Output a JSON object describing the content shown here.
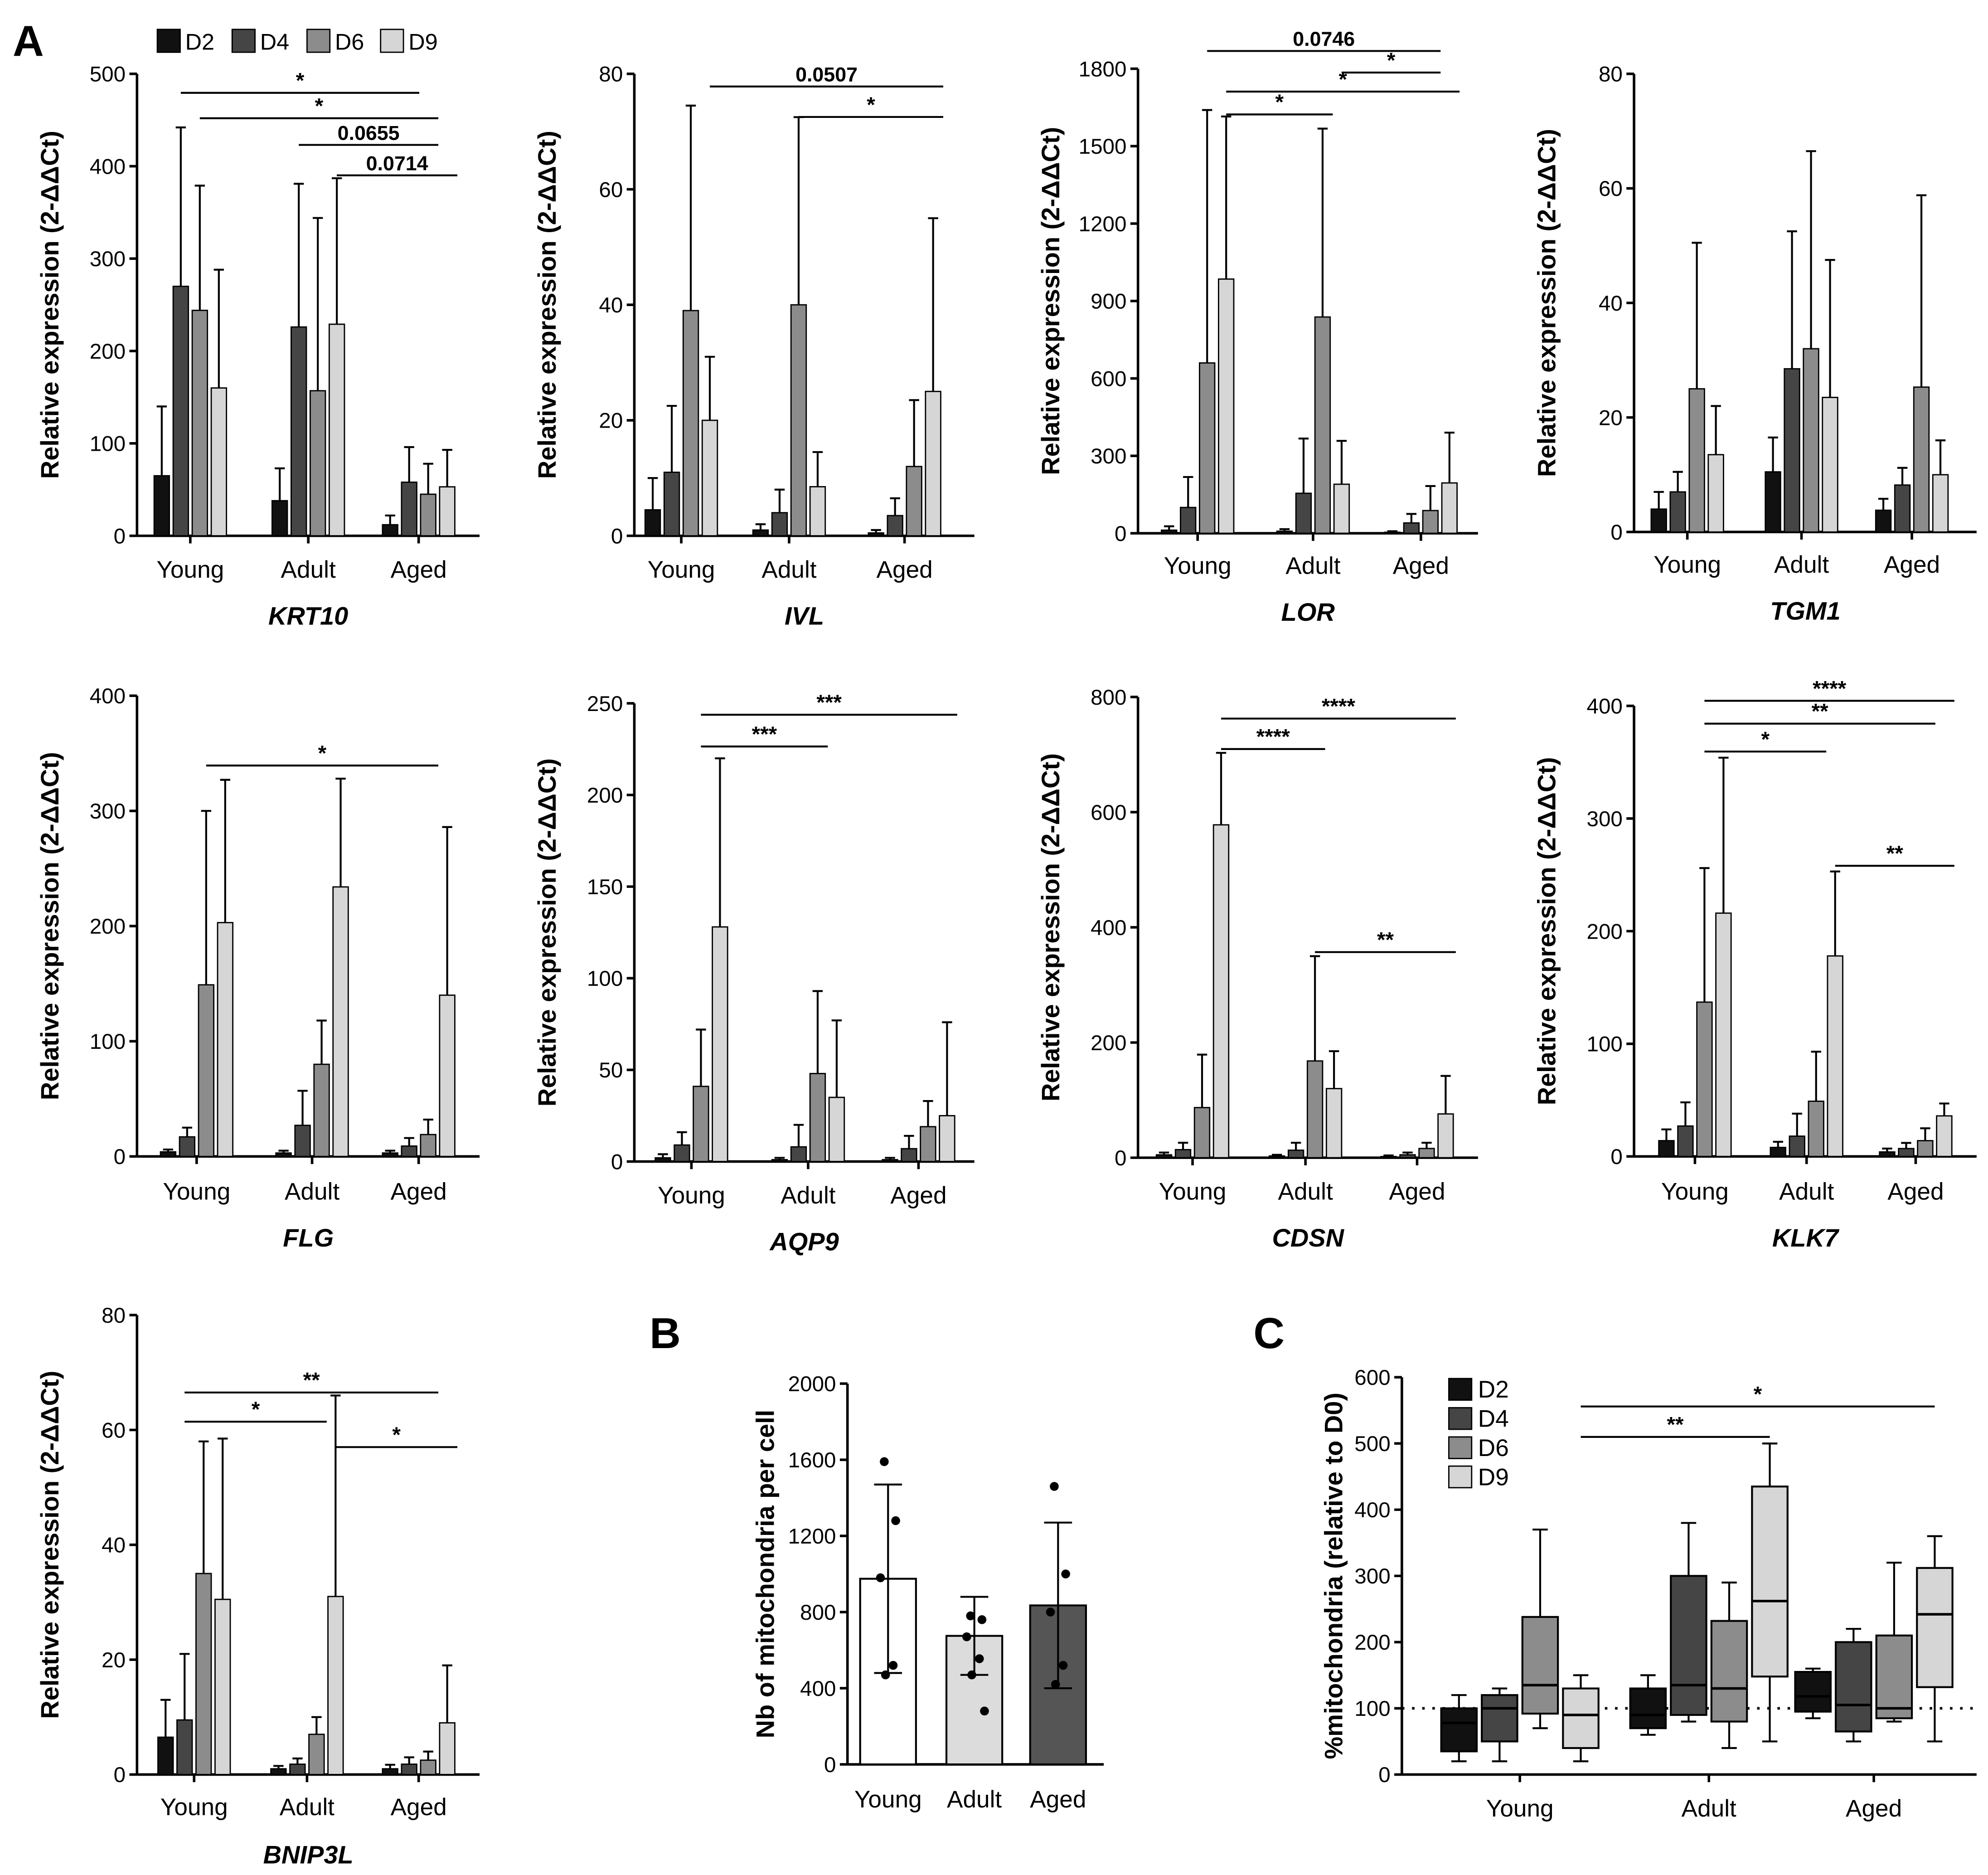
{
  "panel_labels": {
    "a": "A",
    "b": "B",
    "c": "C"
  },
  "colors": {
    "D2": "#111111",
    "D4": "#454545",
    "D6": "#8c8c8c",
    "D9": "#d6d6d6",
    "young": "#ffffff",
    "adult": "#dcdcdc",
    "aged": "#555555"
  },
  "chart_data": [
    {
      "id": "KRT10",
      "type": "bar",
      "title": "KRT10",
      "ylabel": "Relative expression (2-ΔΔCt)",
      "ylim": [
        0,
        500
      ],
      "yticks": [
        0,
        100,
        200,
        300,
        400,
        500
      ],
      "categories": [
        "Young",
        "Adult",
        "Aged"
      ],
      "series": [
        {
          "name": "D2",
          "values": [
            65,
            38,
            12
          ],
          "errors": [
            75,
            35,
            10
          ]
        },
        {
          "name": "D4",
          "values": [
            270,
            226,
            58
          ],
          "errors": [
            172,
            155,
            38
          ]
        },
        {
          "name": "D6",
          "values": [
            244,
            157,
            45
          ],
          "errors": [
            135,
            187,
            33
          ]
        },
        {
          "name": "D9",
          "values": [
            160,
            229,
            53
          ],
          "errors": [
            128,
            158,
            40
          ]
        }
      ],
      "comparisons": [
        {
          "label": "*",
          "from": [
            0,
            1
          ],
          "to": [
            2,
            1
          ]
        },
        {
          "label": "*",
          "from": [
            0,
            2
          ],
          "to": [
            2,
            2
          ]
        },
        {
          "label": "0.0655",
          "from": [
            1,
            1
          ],
          "to": [
            2,
            2
          ]
        },
        {
          "label": "0.0714",
          "from": [
            1,
            3
          ],
          "to": [
            2,
            3
          ]
        }
      ]
    },
    {
      "id": "IVL",
      "type": "bar",
      "title": "IVL",
      "ylabel": "Relative expression (2-ΔΔCt)",
      "ylim": [
        0,
        80
      ],
      "yticks": [
        0,
        20,
        40,
        60,
        80
      ],
      "categories": [
        "Young",
        "Adult",
        "Aged"
      ],
      "series": [
        {
          "name": "D2",
          "values": [
            4.5,
            1,
            0.5
          ],
          "errors": [
            5.5,
            1,
            0.5
          ]
        },
        {
          "name": "D4",
          "values": [
            11,
            4,
            3.5
          ],
          "errors": [
            11.5,
            4,
            3
          ]
        },
        {
          "name": "D6",
          "values": [
            39,
            40,
            12
          ],
          "errors": [
            35.5,
            32.5,
            11.5
          ]
        },
        {
          "name": "D9",
          "values": [
            20,
            8.5,
            25
          ],
          "errors": [
            11,
            6,
            30
          ]
        }
      ],
      "comparisons": [
        {
          "label": "0.0507",
          "from": [
            0,
            3
          ],
          "to": [
            2,
            3
          ]
        },
        {
          "label": "*",
          "from": [
            1,
            2
          ],
          "to": [
            2,
            3
          ]
        }
      ]
    },
    {
      "id": "LOR",
      "type": "bar",
      "title": "LOR",
      "ylabel": "Relative expression (2-ΔΔCt)",
      "ylim": [
        0,
        1800
      ],
      "yticks": [
        0,
        300,
        600,
        900,
        1200,
        1500,
        1800
      ],
      "categories": [
        "Young",
        "Adult",
        "Aged"
      ],
      "series": [
        {
          "name": "D2",
          "values": [
            12,
            8,
            4
          ],
          "errors": [
            15,
            8,
            4
          ]
        },
        {
          "name": "D4",
          "values": [
            100,
            155,
            40
          ],
          "errors": [
            118,
            212,
            35
          ]
        },
        {
          "name": "D6",
          "values": [
            660,
            838,
            88
          ],
          "errors": [
            980,
            730,
            95
          ]
        },
        {
          "name": "D9",
          "values": [
            985,
            190,
            195
          ],
          "errors": [
            630,
            168,
            195
          ]
        }
      ],
      "comparisons": [
        {
          "label": "0.0746",
          "from": [
            0,
            2
          ],
          "to": [
            2,
            2
          ]
        },
        {
          "label": "*",
          "from": [
            1,
            3
          ],
          "to": [
            2,
            2
          ]
        },
        {
          "label": "*",
          "from": [
            0,
            3
          ],
          "to": [
            2,
            3
          ]
        },
        {
          "label": "*",
          "from": [
            0,
            3
          ],
          "to": [
            1,
            2
          ]
        }
      ]
    },
    {
      "id": "TGM1",
      "type": "bar",
      "title": "TGM1",
      "ylabel": "Relative expression (2-ΔΔCt)",
      "ylim": [
        0,
        80
      ],
      "yticks": [
        0,
        20,
        40,
        60,
        80
      ],
      "categories": [
        "Young",
        "Adult",
        "Aged"
      ],
      "series": [
        {
          "name": "D2",
          "values": [
            4,
            10.5,
            3.8
          ],
          "errors": [
            3,
            6,
            2
          ]
        },
        {
          "name": "D4",
          "values": [
            7,
            28.5,
            8.2
          ],
          "errors": [
            3.5,
            24,
            3
          ]
        },
        {
          "name": "D6",
          "values": [
            25,
            32,
            25.3
          ],
          "errors": [
            25.5,
            34.5,
            33.5
          ]
        },
        {
          "name": "D9",
          "values": [
            13.5,
            23.5,
            10
          ],
          "errors": [
            8.5,
            24,
            6
          ]
        }
      ],
      "comparisons": []
    },
    {
      "id": "FLG",
      "type": "bar",
      "title": "FLG",
      "ylabel": "Relative expression (2-ΔΔCt)",
      "ylim": [
        0,
        400
      ],
      "yticks": [
        0,
        100,
        200,
        300,
        400
      ],
      "categories": [
        "Young",
        "Adult",
        "Aged"
      ],
      "series": [
        {
          "name": "D2",
          "values": [
            4,
            3,
            3
          ],
          "errors": [
            2,
            2,
            2
          ]
        },
        {
          "name": "D4",
          "values": [
            17,
            27,
            9
          ],
          "errors": [
            8,
            30,
            7
          ]
        },
        {
          "name": "D6",
          "values": [
            149,
            80,
            19
          ],
          "errors": [
            151,
            38,
            13
          ]
        },
        {
          "name": "D9",
          "values": [
            203,
            234,
            140
          ],
          "errors": [
            124,
            94,
            146
          ]
        }
      ],
      "comparisons": [
        {
          "label": "*",
          "from": [
            0,
            2
          ],
          "to": [
            2,
            2
          ]
        }
      ]
    },
    {
      "id": "AQP9",
      "type": "bar",
      "title": "AQP9",
      "ylabel": "Relative expression (2-ΔΔCt)",
      "ylim": [
        0,
        250
      ],
      "yticks": [
        0,
        50,
        100,
        150,
        200,
        250
      ],
      "categories": [
        "Young",
        "Adult",
        "Aged"
      ],
      "series": [
        {
          "name": "D2",
          "values": [
            2,
            1,
            1
          ],
          "errors": [
            2,
            1,
            1
          ]
        },
        {
          "name": "D4",
          "values": [
            9,
            8,
            7
          ],
          "errors": [
            7,
            12,
            7
          ]
        },
        {
          "name": "D6",
          "values": [
            41,
            48,
            19
          ],
          "errors": [
            31,
            45,
            14
          ]
        },
        {
          "name": "D9",
          "values": [
            128,
            35,
            25
          ],
          "errors": [
            92,
            42,
            51
          ]
        }
      ],
      "comparisons": [
        {
          "label": "***",
          "from": [
            0,
            2
          ],
          "to": [
            2,
            3
          ]
        },
        {
          "label": "***",
          "from": [
            0,
            2
          ],
          "to": [
            1,
            2
          ]
        }
      ]
    },
    {
      "id": "CDSN",
      "type": "bar",
      "title": "CDSN",
      "ylabel": "Relative expression (2-ΔΔCt)",
      "ylim": [
        0,
        800
      ],
      "yticks": [
        0,
        200,
        400,
        600,
        800
      ],
      "categories": [
        "Young",
        "Adult",
        "Aged"
      ],
      "series": [
        {
          "name": "D2",
          "values": [
            5,
            3,
            2
          ],
          "errors": [
            4,
            2,
            2
          ]
        },
        {
          "name": "D4",
          "values": [
            14,
            13,
            5
          ],
          "errors": [
            12,
            13,
            4
          ]
        },
        {
          "name": "D6",
          "values": [
            87,
            168,
            16
          ],
          "errors": [
            92,
            182,
            10
          ]
        },
        {
          "name": "D9",
          "values": [
            578,
            120,
            76
          ],
          "errors": [
            125,
            65,
            66
          ]
        }
      ],
      "comparisons": [
        {
          "label": "****",
          "from": [
            0,
            3
          ],
          "to": [
            2,
            3
          ]
        },
        {
          "label": "****",
          "from": [
            0,
            3
          ],
          "to": [
            1,
            2
          ]
        },
        {
          "label": "**",
          "from": [
            1,
            2
          ],
          "to": [
            2,
            3
          ]
        }
      ]
    },
    {
      "id": "KLK7",
      "type": "bar",
      "title": "KLK7",
      "ylabel": "Relative expression (2-ΔΔCt)",
      "ylim": [
        0,
        400
      ],
      "yticks": [
        0,
        100,
        200,
        300,
        400
      ],
      "categories": [
        "Young",
        "Adult",
        "Aged"
      ],
      "series": [
        {
          "name": "D2",
          "values": [
            14,
            8,
            4
          ],
          "errors": [
            10,
            5,
            3
          ]
        },
        {
          "name": "D4",
          "values": [
            27,
            18,
            7
          ],
          "errors": [
            21,
            20,
            5
          ]
        },
        {
          "name": "D6",
          "values": [
            137,
            49,
            14
          ],
          "errors": [
            119,
            44,
            11
          ]
        },
        {
          "name": "D9",
          "values": [
            216,
            178,
            36
          ],
          "errors": [
            138,
            75,
            11
          ]
        }
      ],
      "comparisons": [
        {
          "label": "****",
          "from": [
            0,
            2
          ],
          "to": [
            2,
            3
          ]
        },
        {
          "label": "**",
          "from": [
            0,
            2
          ],
          "to": [
            2,
            2
          ]
        },
        {
          "label": "*",
          "from": [
            0,
            2
          ],
          "to": [
            1,
            2
          ]
        },
        {
          "label": "**",
          "from": [
            1,
            3
          ],
          "to": [
            2,
            3
          ]
        }
      ]
    },
    {
      "id": "BNIP3L",
      "type": "bar",
      "title": "BNIP3L",
      "ylabel": "Relative expression (2-ΔΔCt)",
      "ylim": [
        0,
        80
      ],
      "yticks": [
        0,
        20,
        40,
        60,
        80
      ],
      "categories": [
        "Young",
        "Adult",
        "Aged"
      ],
      "series": [
        {
          "name": "D2",
          "values": [
            6.5,
            1,
            1
          ],
          "errors": [
            6.5,
            0.5,
            0.7
          ]
        },
        {
          "name": "D4",
          "values": [
            9.5,
            1.8,
            1.8
          ],
          "errors": [
            11.5,
            1,
            1.2
          ]
        },
        {
          "name": "D6",
          "values": [
            35,
            7,
            2.5
          ],
          "errors": [
            23,
            3,
            1.5
          ]
        },
        {
          "name": "D9",
          "values": [
            30.5,
            31,
            9
          ],
          "errors": [
            28,
            35,
            10
          ]
        }
      ],
      "comparisons": [
        {
          "label": "**",
          "from": [
            0,
            1
          ],
          "to": [
            2,
            2
          ]
        },
        {
          "label": "*",
          "from": [
            0,
            1
          ],
          "to": [
            1,
            2
          ]
        },
        {
          "label": "*",
          "from": [
            1,
            3
          ],
          "to": [
            2,
            3
          ]
        }
      ]
    },
    {
      "id": "B",
      "type": "bar",
      "title": "",
      "ylabel": "Nb of mitochondria per cell",
      "ylim": [
        0,
        2000
      ],
      "yticks": [
        0,
        400,
        800,
        1200,
        1600,
        2000
      ],
      "categories": [
        "Young",
        "Adult",
        "Aged"
      ],
      "values": [
        975,
        675,
        835
      ],
      "errors": [
        495,
        205,
        435
      ],
      "points": [
        [
          1590,
          1280,
          980,
          520,
          470
        ],
        [
          780,
          760,
          670,
          555,
          470,
          280
        ],
        [
          1460,
          1000,
          800,
          520,
          420
        ]
      ]
    },
    {
      "id": "C",
      "type": "box",
      "title": "",
      "ylabel": "%mitochondria (relative to D0)",
      "ylim": [
        0,
        600
      ],
      "yticks": [
        0,
        100,
        200,
        300,
        400,
        500,
        600
      ],
      "categories": [
        "Young",
        "Adult",
        "Aged"
      ],
      "reference_line": 100,
      "series": [
        {
          "name": "D2",
          "boxes": [
            [
              20,
              35,
              78,
              100,
              120
            ],
            [
              60,
              70,
              90,
              130,
              150
            ],
            [
              85,
              95,
              118,
              155,
              160
            ]
          ]
        },
        {
          "name": "D4",
          "boxes": [
            [
              20,
              50,
              100,
              120,
              130
            ],
            [
              80,
              90,
              135,
              300,
              380
            ],
            [
              50,
              65,
              105,
              200,
              220
            ]
          ]
        },
        {
          "name": "D6",
          "boxes": [
            [
              70,
              92,
              135,
              238,
              370
            ],
            [
              40,
              80,
              130,
              232,
              290
            ],
            [
              80,
              85,
              100,
              210,
              320
            ]
          ]
        },
        {
          "name": "D9",
          "boxes": [
            [
              20,
              40,
              90,
              130,
              150
            ],
            [
              50,
              148,
              262,
              435,
              500
            ],
            [
              50,
              132,
              242,
              312,
              360
            ]
          ]
        }
      ],
      "comparisons": [
        {
          "label": "*",
          "from": [
            0,
            3
          ],
          "to": [
            2,
            3
          ]
        },
        {
          "label": "**",
          "from": [
            0,
            3
          ],
          "to": [
            1,
            3
          ]
        }
      ]
    }
  ]
}
